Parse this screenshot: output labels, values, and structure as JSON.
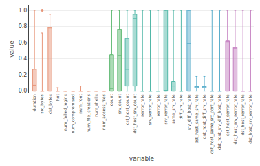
{
  "chart_data": {
    "type": "box",
    "xlabel": "variable",
    "ylabel": "value",
    "categories": [
      "duration",
      "src_bytes",
      "dst_bytes",
      "hot",
      "num_failed_logins",
      "num_compromised",
      "num_root",
      "num_file_creations",
      "num_shells",
      "num_access_files",
      "count",
      "srv_count",
      "dst_host_count",
      "dst_host_srv_count",
      "serror_rate",
      "srv_serror_rate",
      "rerror_rate",
      "srv_rerror_rate",
      "same_srv_rate",
      "diff_srv_rate",
      "srv_diff_host_rate",
      "dst_host_same_srv_rate",
      "dst_host_diff_srv_rate",
      "dst_host_same_src_port_rate",
      "dst_host_srv_diff_host_rate",
      "dst_host_serror_rate",
      "dst_host_srv_serror_rate",
      "dst_host_rerror_rate",
      "dst_host_srv_rerror_rate"
    ],
    "q1": [
      0.0,
      0.0,
      0.0,
      0.0,
      0.0,
      0.0,
      0.0,
      0.0,
      0.0,
      0.0,
      0.0,
      0.0,
      0.06,
      0.06,
      0.0,
      0.0,
      0.0,
      0.0,
      0.0,
      0.0,
      0.0,
      0.04,
      0.04,
      0.0,
      0.0,
      0.0,
      0.0,
      0.0,
      0.0
    ],
    "median": [
      0.07,
      0.0,
      0.79,
      0.0,
      0.0,
      0.0,
      0.0,
      0.0,
      0.0,
      0.0,
      0.03,
      0.44,
      0.27,
      0.9,
      0.0,
      0.0,
      0.0,
      0.0,
      0.06,
      0.0,
      0.59,
      0.06,
      0.06,
      0.0,
      0.0,
      0.62,
      0.54,
      0.0,
      0.0
    ],
    "q3": [
      0.27,
      0.0,
      0.79,
      0.0,
      0.0,
      0.0,
      0.0,
      0.0,
      0.0,
      0.0,
      0.45,
      0.76,
      0.65,
      0.95,
      0.0,
      0.0,
      0.0,
      1.0,
      0.12,
      0.0,
      1.0,
      0.06,
      0.06,
      0.0,
      0.0,
      0.62,
      0.54,
      0.0,
      0.0
    ],
    "whislo": [
      0.0,
      0.0,
      0.0,
      0.0,
      0.0,
      0.0,
      0.0,
      0.0,
      0.0,
      0.0,
      0.0,
      0.0,
      0.0,
      0.0,
      0.0,
      0.0,
      0.0,
      0.0,
      0.0,
      0.0,
      0.0,
      0.0,
      0.0,
      0.0,
      0.0,
      0.0,
      0.0,
      0.0,
      0.0
    ],
    "whishi": [
      1.0,
      0.72,
      0.95,
      0.04,
      0.0,
      0.0,
      0.06,
      0.0,
      0.0,
      0.0,
      1.0,
      1.0,
      1.0,
      1.0,
      1.0,
      1.0,
      1.0,
      1.0,
      1.0,
      1.0,
      1.0,
      0.18,
      0.18,
      1.0,
      1.0,
      1.0,
      1.0,
      1.0,
      1.0
    ],
    "fliers": [
      [],
      [
        1.0
      ],
      [],
      [],
      [],
      [],
      [],
      [],
      [],
      [],
      [],
      [],
      [],
      [],
      [],
      [],
      [],
      [],
      [],
      [],
      [],
      [],
      [],
      [],
      [],
      [],
      [],
      [],
      []
    ],
    "colors": [
      "#e8967a",
      "#e8967a",
      "#e8967a",
      "#e8967a",
      "#e8967a",
      "#e8967a",
      "#e8967a",
      "#e8967a",
      "#e8967a",
      "#e8967a",
      "#5ab76e",
      "#5ab76e",
      "#52b8a8",
      "#52b8a8",
      "#52b8a8",
      "#52b8a8",
      "#52b8a8",
      "#52b8a8",
      "#52b8a8",
      "#52b8a8",
      "#5aaecc",
      "#5aaecc",
      "#5aaecc",
      "#5aaecc",
      "#5aaecc",
      "#c47fc0",
      "#c47fc0",
      "#c47fc0",
      "#c47fc0"
    ],
    "ylim": [
      -0.02,
      1.06
    ],
    "yticks": [
      {
        "value": 0,
        "label": "0.0"
      },
      0.2,
      0.4,
      0.6,
      0.8,
      {
        "value": 1,
        "label": "1.0"
      }
    ],
    "grid": true
  }
}
